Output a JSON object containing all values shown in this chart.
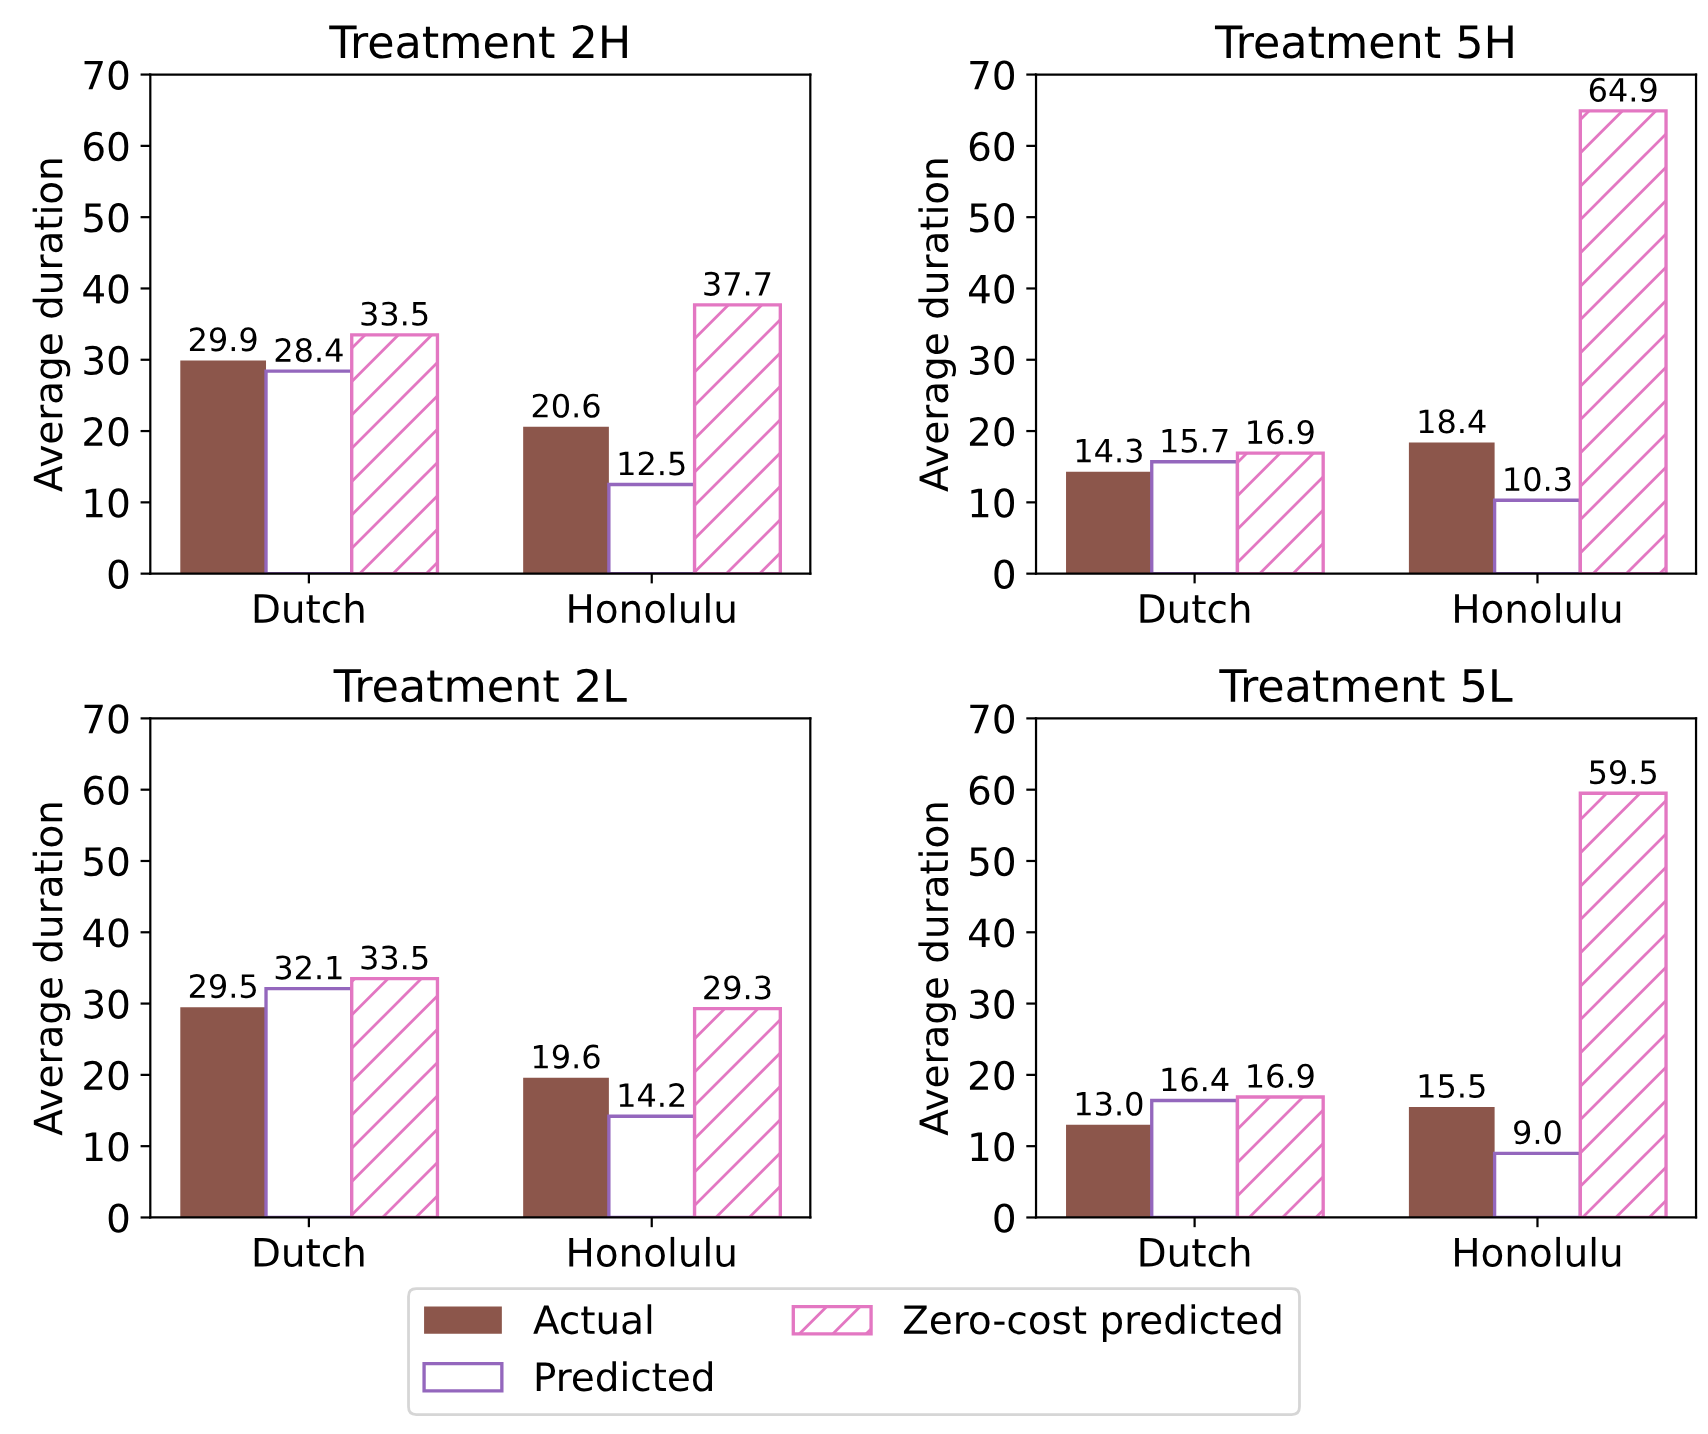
{
  "chart_data": [
    {
      "type": "bar",
      "title": "Treatment 2H",
      "ylabel": "Average duration",
      "categories": [
        "Dutch",
        "Honolulu"
      ],
      "ylim": [
        0,
        70
      ],
      "yticks": [
        0,
        10,
        20,
        30,
        40,
        50,
        60,
        70
      ],
      "legend": "bottom",
      "series": [
        {
          "name": "Actual",
          "color": "#8c564b",
          "values": [
            29.9,
            20.6
          ],
          "value_labels": [
            "29.9",
            "20.6"
          ]
        },
        {
          "name": "Predicted",
          "color": "#9467bd",
          "values": [
            28.4,
            12.5
          ],
          "value_labels": [
            "28.4",
            "12.5"
          ]
        },
        {
          "name": "Zero-cost predicted",
          "color": "#e377c2",
          "values": [
            33.5,
            37.7
          ],
          "value_labels": [
            "33.5",
            "37.7"
          ]
        }
      ]
    },
    {
      "type": "bar",
      "title": "Treatment 5H",
      "ylabel": "Average duration",
      "categories": [
        "Dutch",
        "Honolulu"
      ],
      "ylim": [
        0,
        70
      ],
      "yticks": [
        0,
        10,
        20,
        30,
        40,
        50,
        60,
        70
      ],
      "series": [
        {
          "color": "#8c564b",
          "values": [
            14.3,
            18.4
          ],
          "value_labels": [
            "14.3",
            "18.4"
          ]
        },
        {
          "color": "#9467bd",
          "values": [
            15.7,
            10.3
          ],
          "value_labels": [
            "15.7",
            "10.3"
          ]
        },
        {
          "color": "#e377c2",
          "values": [
            16.9,
            64.9
          ],
          "value_labels": [
            "16.9",
            "64.9"
          ]
        }
      ]
    },
    {
      "type": "bar",
      "title": "Treatment 2L",
      "ylabel": "Average duration",
      "categories": [
        "Dutch",
        "Honolulu"
      ],
      "ylim": [
        0,
        70
      ],
      "yticks": [
        0,
        10,
        20,
        30,
        40,
        50,
        60,
        70
      ],
      "series": [
        {
          "color": "#8c564b",
          "values": [
            29.5,
            19.6
          ],
          "value_labels": [
            "29.5",
            "19.6"
          ]
        },
        {
          "color": "#9467bd",
          "values": [
            32.1,
            14.2
          ],
          "value_labels": [
            "32.1",
            "14.2"
          ]
        },
        {
          "color": "#e377c2",
          "values": [
            33.5,
            29.3
          ],
          "value_labels": [
            "33.5",
            "29.3"
          ]
        }
      ]
    },
    {
      "type": "bar",
      "title": "Treatment 5L",
      "ylabel": "Average duration",
      "categories": [
        "Dutch",
        "Honolulu"
      ],
      "ylim": [
        0,
        70
      ],
      "yticks": [
        0,
        10,
        20,
        30,
        40,
        50,
        60,
        70
      ],
      "series": [
        {
          "color": "#8c564b",
          "values": [
            13.0,
            15.5
          ],
          "value_labels": [
            "13.0",
            "15.5"
          ]
        },
        {
          "color": "#9467bd",
          "values": [
            16.4,
            9.0
          ],
          "value_labels": [
            "16.4",
            "9.0"
          ]
        },
        {
          "color": "#e377c2",
          "values": [
            16.9,
            59.5
          ],
          "value_labels": [
            "16.9",
            "59.5"
          ]
        }
      ]
    }
  ]
}
